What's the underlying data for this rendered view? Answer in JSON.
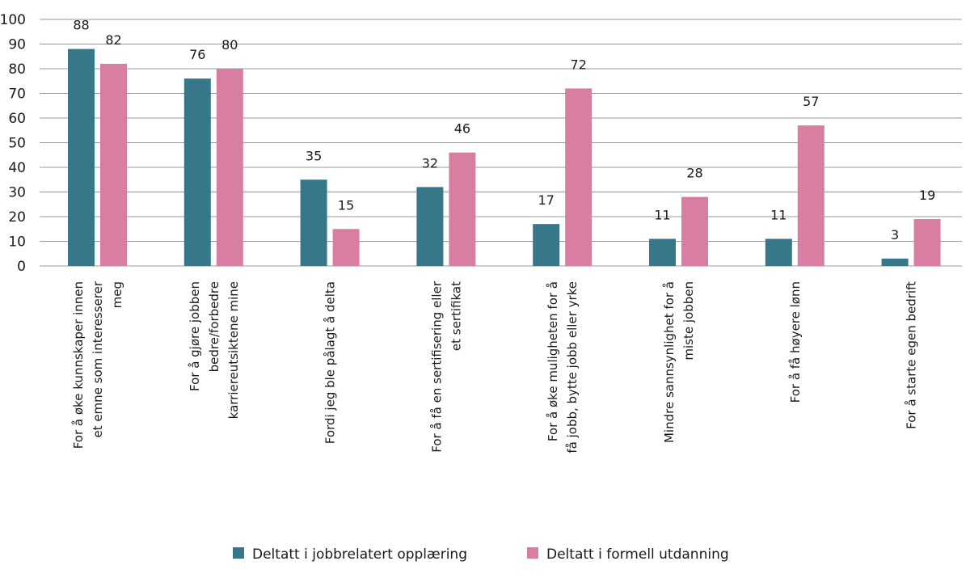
{
  "chart_data": {
    "type": "bar",
    "title": "",
    "xlabel": "",
    "ylabel": "",
    "ylim": [
      0,
      100
    ],
    "yticks": [
      0,
      10,
      20,
      30,
      40,
      50,
      60,
      70,
      80,
      90,
      100
    ],
    "grid": true,
    "legend_position": "bottom",
    "categories": [
      [
        "For å øke kunnskaper innen",
        "et emne som interesserer",
        "meg"
      ],
      [
        "For å gjøre jobben",
        "bedre/forbedre",
        "karriereutsiktene mine"
      ],
      [
        "Fordi jeg ble pålagt å delta"
      ],
      [
        "For å få en sertifisering eller",
        "et sertifikat"
      ],
      [
        "For å øke muligheten for å",
        "få  jobb, bytte jobb eller yrke"
      ],
      [
        "Mindre sannsynlighet for å",
        "miste jobben"
      ],
      [
        "For å få høyere lønn"
      ],
      [
        "For å starte egen bedrift"
      ]
    ],
    "series": [
      {
        "name": "Deltatt i jobbrelatert opplæring",
        "color": "#367889",
        "values": [
          88,
          76,
          35,
          32,
          17,
          11,
          11,
          3
        ]
      },
      {
        "name": "Deltatt i formell utdanning",
        "color": "#d87ea2",
        "values": [
          82,
          80,
          15,
          46,
          72,
          28,
          57,
          19
        ]
      }
    ]
  }
}
